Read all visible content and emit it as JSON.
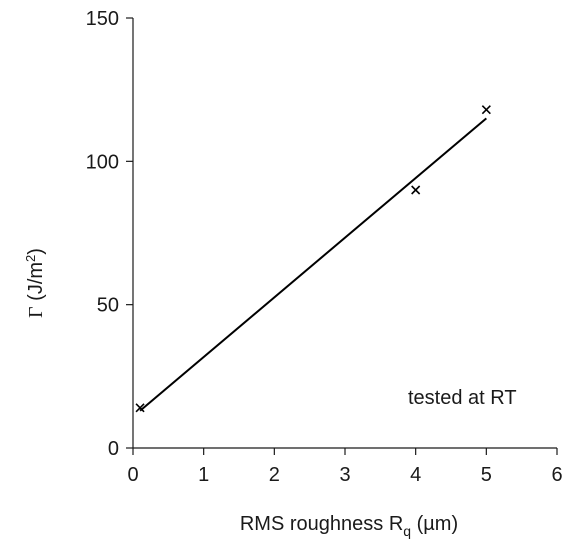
{
  "chart_data": {
    "type": "scatter",
    "title": "",
    "xlabel": {
      "main": "RMS roughness R",
      "sub": "q",
      "units": " (µm)"
    },
    "ylabel": {
      "symbol": "Γ",
      "units_pre": " (J/m",
      "sup": "2",
      "units_post": ")"
    },
    "xlim": [
      0,
      6
    ],
    "ylim": [
      0,
      150
    ],
    "x_ticks": [
      "0",
      "1",
      "2",
      "3",
      "4",
      "5",
      "6"
    ],
    "y_ticks": [
      "0",
      "50",
      "100",
      "150"
    ],
    "grid": false,
    "legend": "none",
    "series": [
      {
        "marker": "x",
        "color": "#000000",
        "points": [
          {
            "x": 0.1,
            "y": 14
          },
          {
            "x": 4.0,
            "y": 90
          },
          {
            "x": 5.0,
            "y": 118
          }
        ]
      }
    ],
    "fit_line": {
      "x_start": 0.1,
      "y_start": 13,
      "x_end": 5.0,
      "y_end": 115,
      "color": "#000000"
    },
    "annotation": "tested at RT"
  }
}
